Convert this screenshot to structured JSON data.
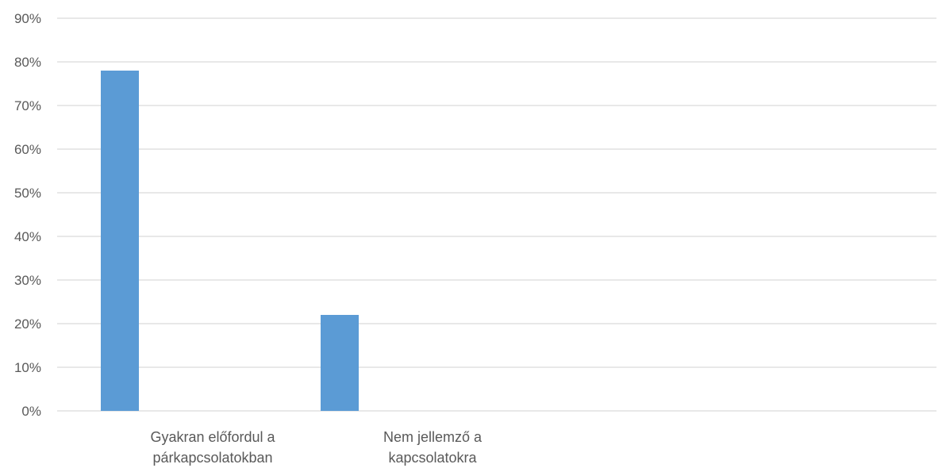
{
  "chart_data": {
    "type": "bar",
    "categories": [
      [
        "Gyakran előfordul a",
        "párkapcsolatokban"
      ],
      [
        "Nem jellemző a",
        "kapcsolatokra"
      ],
      [
        ""
      ],
      [
        ""
      ]
    ],
    "values": [
      78,
      22,
      null,
      null
    ],
    "ylim": [
      0,
      90
    ],
    "yticks": [
      "0%",
      "10%",
      "20%",
      "30%",
      "40%",
      "50%",
      "60%",
      "70%",
      "80%",
      "90%"
    ],
    "grid": true,
    "bar_color": "#5b9bd5",
    "grid_color": "#d9d9d9",
    "title": "",
    "xlabel": "",
    "ylabel": ""
  }
}
